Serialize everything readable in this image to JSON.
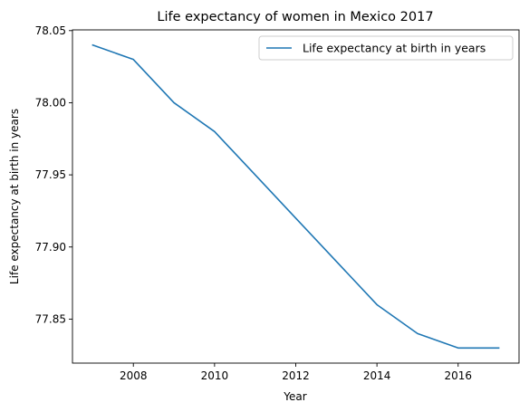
{
  "chart_data": {
    "type": "line",
    "title": "Life expectancy of women in Mexico 2017",
    "xlabel": "Year",
    "ylabel": "Life expectancy at birth in years",
    "x": [
      2007,
      2008,
      2009,
      2010,
      2011,
      2012,
      2013,
      2014,
      2015,
      2016,
      2017
    ],
    "series": [
      {
        "name": "Life expectancy at birth in years",
        "color": "#1f77b4",
        "values": [
          78.04,
          78.03,
          78.0,
          77.98,
          77.95,
          77.92,
          77.89,
          77.86,
          77.84,
          77.83,
          77.83
        ]
      }
    ],
    "xlim": [
      2006.5,
      2017.5
    ],
    "ylim": [
      77.8195,
      78.0505
    ],
    "xticks": [
      2008,
      2010,
      2012,
      2014,
      2016
    ],
    "xtick_labels": [
      "2008",
      "2010",
      "2012",
      "2014",
      "2016"
    ],
    "yticks": [
      77.85,
      77.9,
      77.95,
      78.0,
      78.05
    ],
    "ytick_labels": [
      "77.85",
      "77.90",
      "77.95",
      "78.00",
      "78.05"
    ],
    "grid": false,
    "legend_position": "top-right"
  }
}
